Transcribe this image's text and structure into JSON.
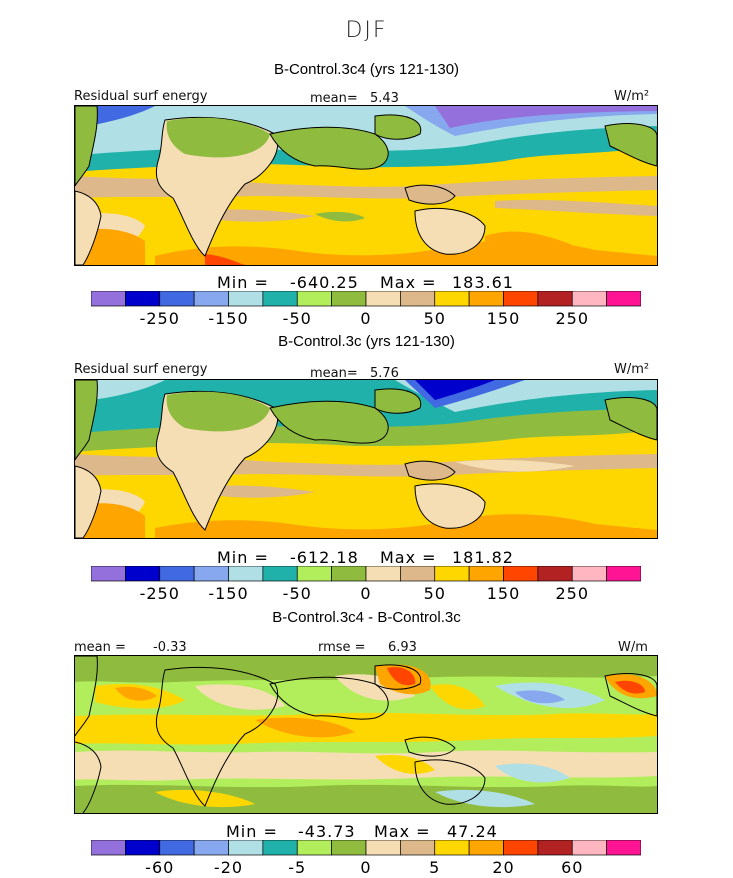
{
  "figure": {
    "season": "DJF"
  },
  "chart_data": [
    {
      "type": "heatmap",
      "title": "B-Control.3c4 (yrs 121-130)",
      "field_label": "Residual surf energy",
      "units": "W/m²",
      "mean_label": "mean=",
      "mean_value": "5.43",
      "min_label": "Min =",
      "min_value": "-640.25",
      "max_label": "Max =",
      "max_value": "183.61",
      "colorbar_ticks": [
        "-250",
        "-150",
        "-50",
        "0",
        "50",
        "150",
        "250"
      ],
      "colors": [
        "#9370db",
        "#0000cd",
        "#4169e1",
        "#87a8ee",
        "#b0e0e6",
        "#20b2aa",
        "#b2ee5c",
        "#8fbc3f",
        "#f5deb3",
        "#ddb88a",
        "#ffd700",
        "#ffa500",
        "#ff4500",
        "#b22222",
        "#ffb6c1",
        "#ff1493"
      ]
    },
    {
      "type": "heatmap",
      "title": "B-Control.3c (yrs 121-130)",
      "field_label": "Residual surf energy",
      "units": "W/m²",
      "mean_label": "mean=",
      "mean_value": "5.76",
      "min_label": "Min =",
      "min_value": "-612.18",
      "max_label": "Max =",
      "max_value": "181.82",
      "colorbar_ticks": [
        "-250",
        "-150",
        "-50",
        "0",
        "50",
        "150",
        "250"
      ],
      "colors": [
        "#9370db",
        "#0000cd",
        "#4169e1",
        "#87a8ee",
        "#b0e0e6",
        "#20b2aa",
        "#b2ee5c",
        "#8fbc3f",
        "#f5deb3",
        "#ddb88a",
        "#ffd700",
        "#ffa500",
        "#ff4500",
        "#b22222",
        "#ffb6c1",
        "#ff1493"
      ]
    },
    {
      "type": "heatmap",
      "title": "B-Control.3c4 - B-Control.3c",
      "units": "W/m",
      "mean_label": "mean =",
      "mean_value": "-0.33",
      "rmse_label": "rmse =",
      "rmse_value": "6.93",
      "min_label": "Min =",
      "min_value": "-43.73",
      "max_label": "Max =",
      "max_value": "47.24",
      "colorbar_ticks": [
        "-60",
        "-20",
        "-5",
        "0",
        "5",
        "20",
        "60"
      ],
      "colors": [
        "#9370db",
        "#0000cd",
        "#4169e1",
        "#87a8ee",
        "#b0e0e6",
        "#20b2aa",
        "#b2ee5c",
        "#8fbc3f",
        "#f5deb3",
        "#ddb88a",
        "#ffd700",
        "#ffa500",
        "#ff4500",
        "#b22222",
        "#ffb6c1",
        "#ff1493"
      ]
    }
  ]
}
